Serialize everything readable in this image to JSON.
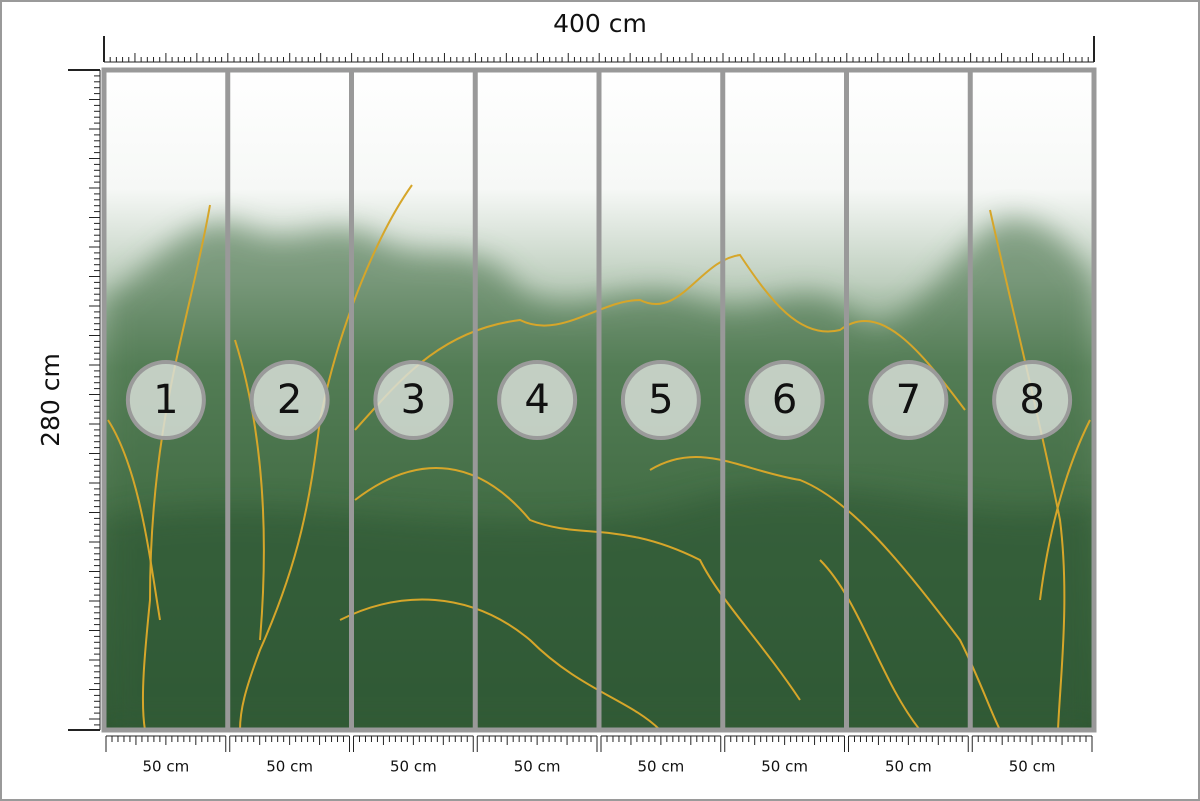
{
  "dimensions": {
    "width": "400 cm",
    "height": "280 cm"
  },
  "panels": [
    {
      "number": "1",
      "width": "50 cm"
    },
    {
      "number": "2",
      "width": "50 cm"
    },
    {
      "number": "3",
      "width": "50 cm"
    },
    {
      "number": "4",
      "width": "50 cm"
    },
    {
      "number": "5",
      "width": "50 cm"
    },
    {
      "number": "6",
      "width": "50 cm"
    },
    {
      "number": "7",
      "width": "50 cm"
    },
    {
      "number": "8",
      "width": "50 cm"
    }
  ]
}
